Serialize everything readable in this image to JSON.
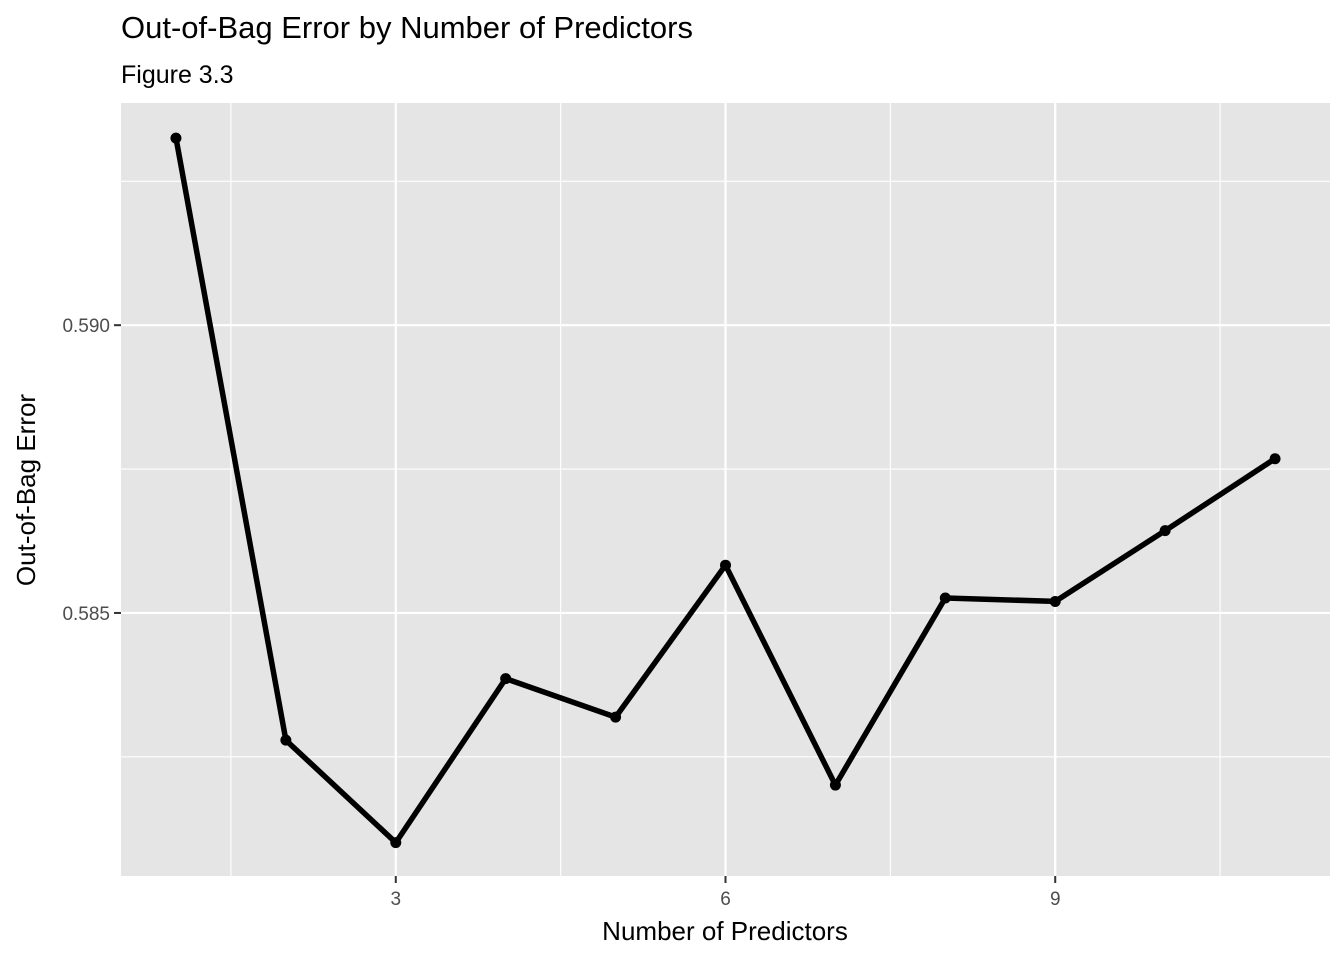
{
  "chart_data": {
    "type": "line",
    "title": "Out-of-Bag Error by Number of Predictors",
    "subtitle": "Figure 3.3",
    "xlabel": "Number of Predictors",
    "ylabel": "Out-of-Bag Error",
    "x": [
      1,
      2,
      3,
      4,
      5,
      6,
      7,
      8,
      9,
      10,
      11
    ],
    "y": [
      0.59325,
      0.58279,
      0.58101,
      0.58386,
      0.58319,
      0.58583,
      0.58201,
      0.58526,
      0.5852,
      0.58643,
      0.58768
    ],
    "xlim": [
      0.5,
      11.5
    ],
    "ylim": [
      0.58043,
      0.59386
    ],
    "x_ticks": [
      3,
      6,
      9
    ],
    "x_tick_labels": [
      "3",
      "6",
      "9"
    ],
    "y_ticks": [
      0.585,
      0.59
    ],
    "y_tick_labels": [
      "0.585",
      "0.590"
    ],
    "x_minor_ticks": [
      1.5,
      4.5,
      7.5,
      10.5
    ],
    "y_minor_ticks": [
      0.5825,
      0.5875,
      0.5925
    ],
    "grid": true,
    "panel_background": "#e5e5e5",
    "grid_color": "#ffffff",
    "line_color": "#000000"
  }
}
